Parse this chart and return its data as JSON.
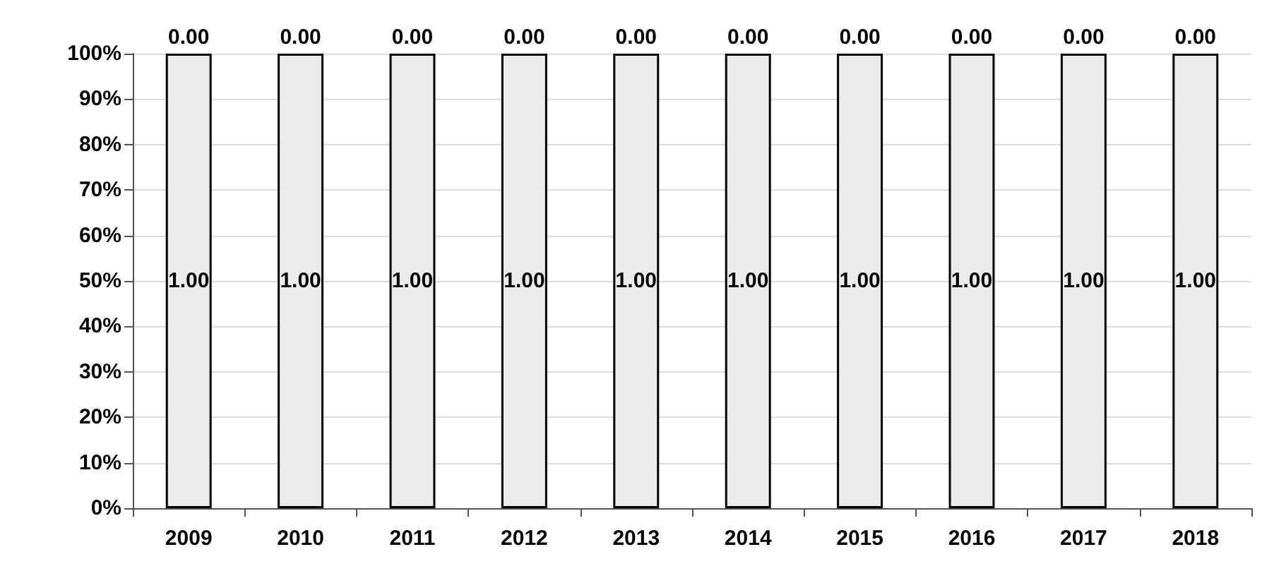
{
  "chart_data": {
    "type": "bar",
    "categories": [
      "2009",
      "2010",
      "2011",
      "2012",
      "2013",
      "2014",
      "2015",
      "2016",
      "2017",
      "2018"
    ],
    "series": [
      {
        "color": "#ebebeb",
        "values": [
          1,
          1,
          1,
          1,
          1,
          1,
          1,
          1,
          1,
          1
        ],
        "value_labels": [
          "1.00",
          "1.00",
          "1.00",
          "1.00",
          "1.00",
          "1.00",
          "1.00",
          "1.00",
          "1.00",
          "1.00"
        ]
      }
    ],
    "annotations": [
      {
        "text": "0.00",
        "x": "2009",
        "y": 1
      },
      {
        "text": "0.00",
        "x": "2010",
        "y": 1
      },
      {
        "text": "0.00",
        "x": "2011",
        "y": 1
      },
      {
        "text": "0.00",
        "x": "2012",
        "y": 1
      },
      {
        "text": "0.00",
        "x": "2013",
        "y": 1
      },
      {
        "text": "0.00",
        "x": "2014",
        "y": 1
      },
      {
        "text": "0.00",
        "x": "2015",
        "y": 1
      },
      {
        "text": "0.00",
        "x": "2016",
        "y": 1
      },
      {
        "text": "0.00",
        "x": "2017",
        "y": 1
      },
      {
        "text": "0.00",
        "x": "2018",
        "y": 1
      }
    ],
    "ylim": [
      0,
      1
    ],
    "yticks": [
      {
        "value": 0,
        "label": "0%"
      },
      {
        "value": 0.1,
        "label": "10%"
      },
      {
        "value": 0.2,
        "label": "20%"
      },
      {
        "value": 0.3,
        "label": "30%"
      },
      {
        "value": 0.4,
        "label": "40%"
      },
      {
        "value": 0.5,
        "label": "50%"
      },
      {
        "value": 0.6,
        "label": "60%"
      },
      {
        "value": 0.7,
        "label": "70%"
      },
      {
        "value": 0.8,
        "label": "80%"
      },
      {
        "value": 0.9,
        "label": "90%"
      },
      {
        "value": 1,
        "label": "100%"
      }
    ],
    "grid": "y"
  }
}
